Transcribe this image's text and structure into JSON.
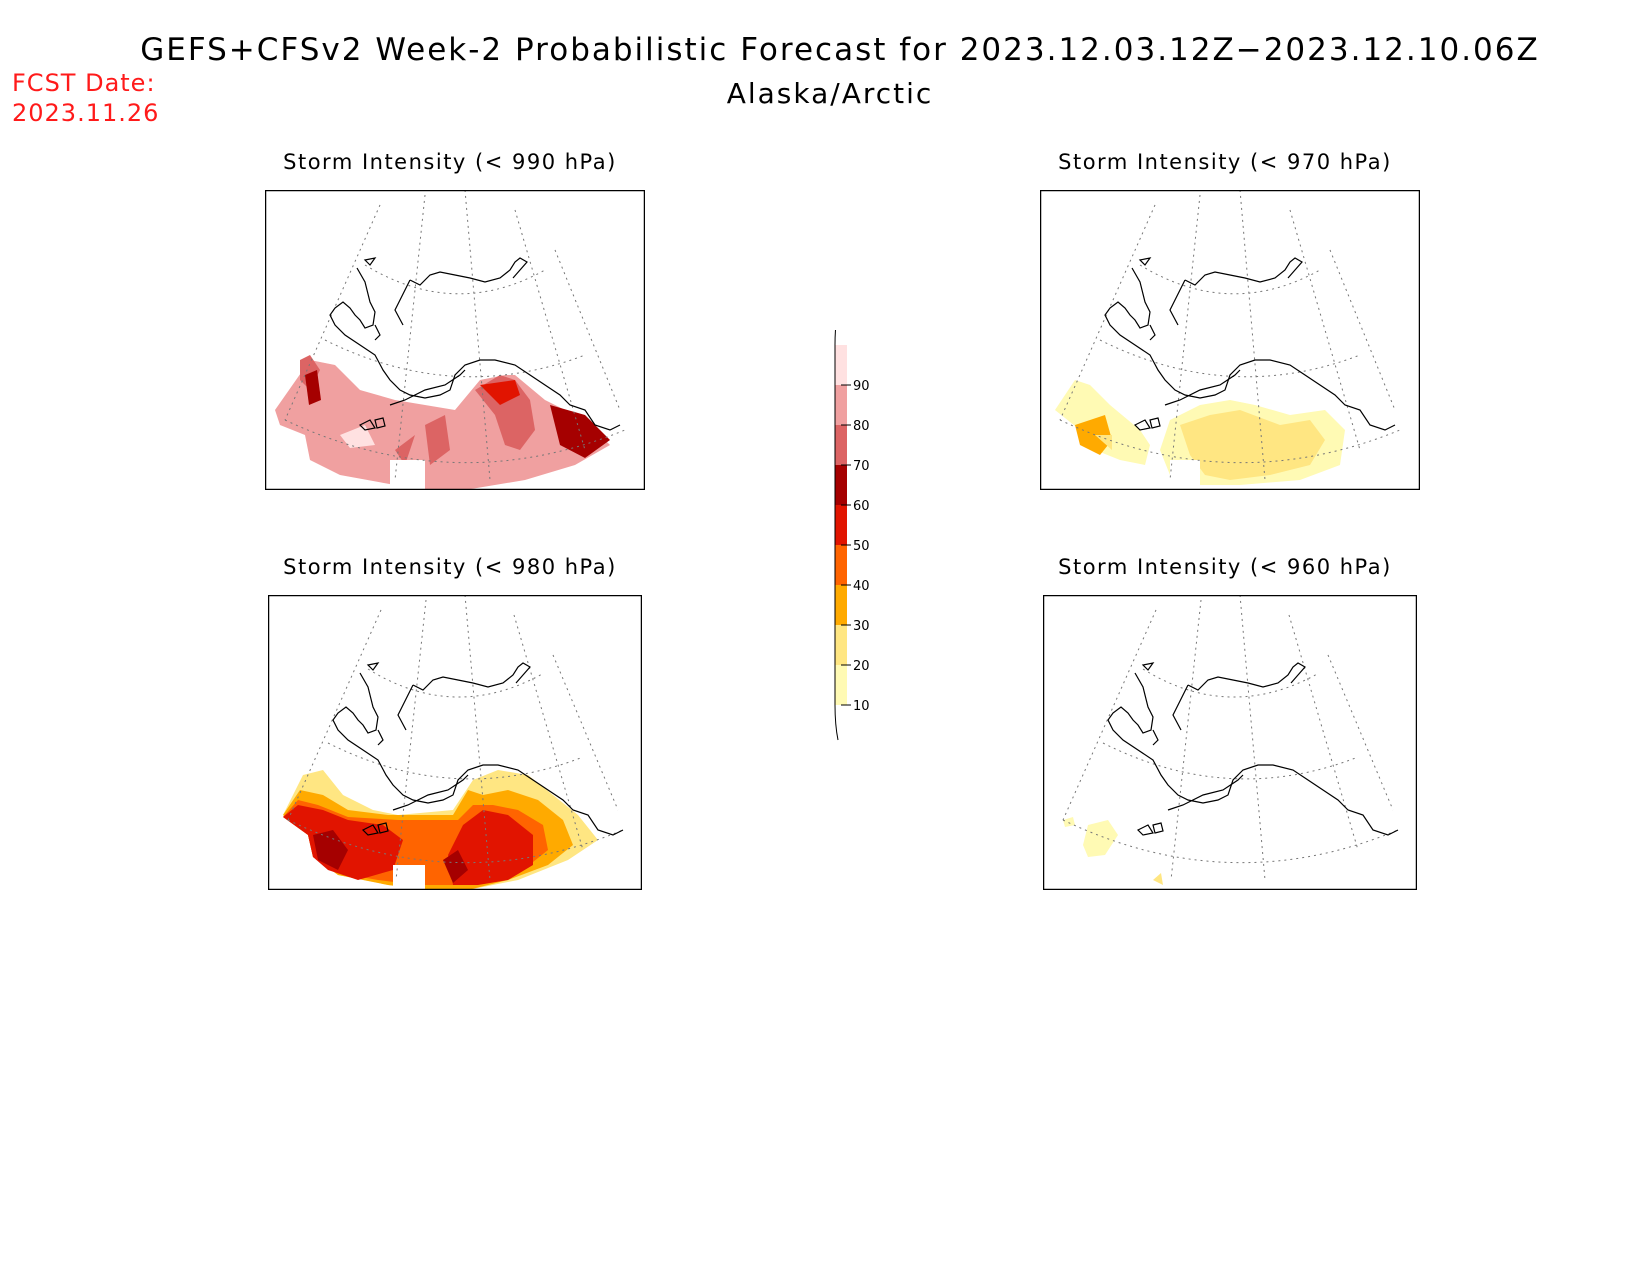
{
  "title": "GEFS+CFSv2 Week-2 Probabilistic Forecast for 2023.12.03.12Z−2023.12.10.06Z",
  "subtitle": "Alaska/Arctic",
  "fcst_date": {
    "label": "FCST Date:",
    "value": "2023.11.26"
  },
  "panels": [
    {
      "id": "p990",
      "title": "Storm Intensity (< 990 hPa)"
    },
    {
      "id": "p970",
      "title": "Storm Intensity (< 970 hPa)"
    },
    {
      "id": "p980",
      "title": "Storm Intensity (< 980 hPa)"
    },
    {
      "id": "p960",
      "title": "Storm Intensity (< 960 hPa)"
    }
  ],
  "colorbar": {
    "ticks": [
      "10",
      "20",
      "30",
      "40",
      "50",
      "60",
      "70",
      "80",
      "90"
    ],
    "colors": [
      "#fffab4",
      "#ffe682",
      "#ffaa00",
      "#ff6400",
      "#e11400",
      "#a50000",
      "#dc6464",
      "#f0a0a0",
      "#ffe1e1"
    ]
  }
}
